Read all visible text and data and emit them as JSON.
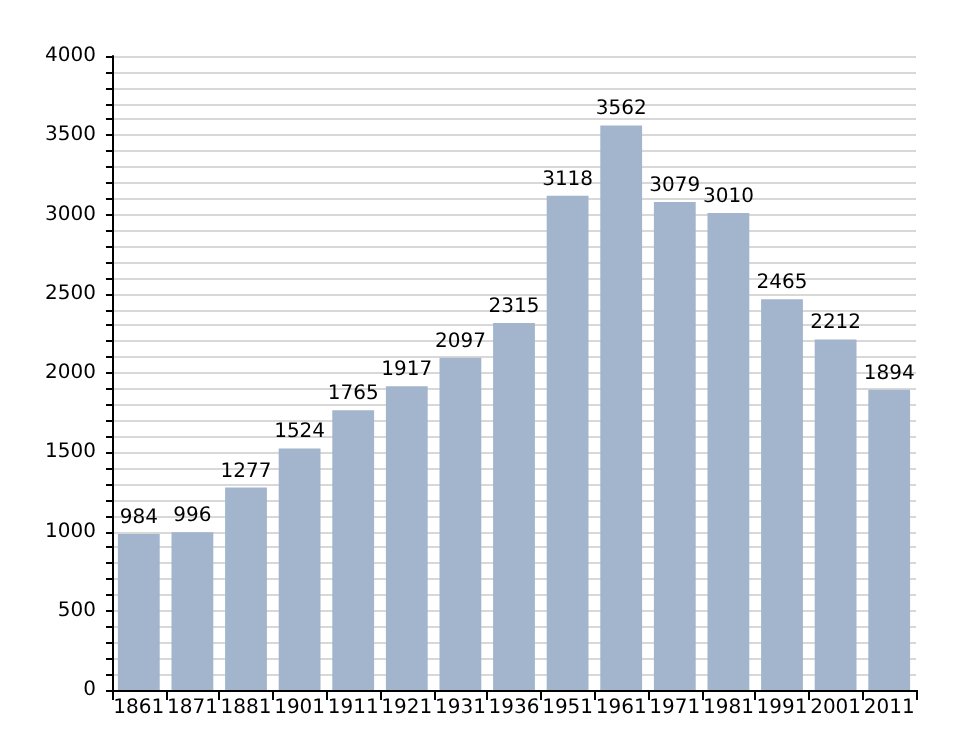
{
  "chart_data": {
    "type": "bar",
    "categories": [
      "1861",
      "1871",
      "1881",
      "1901",
      "1911",
      "1921",
      "1931",
      "1936",
      "1951",
      "1961",
      "1971",
      "1981",
      "1991",
      "2001",
      "2011"
    ],
    "values": [
      984,
      996,
      1277,
      1524,
      1765,
      1917,
      2097,
      2315,
      3118,
      3562,
      3079,
      3010,
      2465,
      2212,
      1894
    ],
    "color": "#a2b5cd",
    "data_labels": true,
    "ylim": [
      0,
      4000
    ],
    "yticks": [
      0,
      {
        "value": 100,
        "label": null
      },
      {
        "value": 200,
        "label": null
      },
      {
        "value": 300,
        "label": null
      },
      {
        "value": 400,
        "label": null
      },
      500,
      {
        "value": 600,
        "label": null
      },
      {
        "value": 700,
        "label": null
      },
      {
        "value": 800,
        "label": null
      },
      {
        "value": 900,
        "label": null
      },
      1000,
      {
        "value": 1100,
        "label": null
      },
      {
        "value": 1200,
        "label": null
      },
      {
        "value": 1300,
        "label": null
      },
      {
        "value": 1400,
        "label": null
      },
      1500,
      {
        "value": 1600,
        "label": null
      },
      {
        "value": 1700,
        "label": null
      },
      {
        "value": 1800,
        "label": null
      },
      {
        "value": 1900,
        "label": null
      },
      2000,
      {
        "value": 2100,
        "label": null
      },
      {
        "value": 2200,
        "label": null
      },
      {
        "value": 2300,
        "label": null
      },
      {
        "value": 2400,
        "label": null
      },
      2500,
      {
        "value": 2600,
        "label": null
      },
      {
        "value": 2700,
        "label": null
      },
      {
        "value": 2800,
        "label": null
      },
      {
        "value": 2900,
        "label": null
      },
      3000,
      {
        "value": 3100,
        "label": null
      },
      {
        "value": 3200,
        "label": null
      },
      {
        "value": 3300,
        "label": null
      },
      {
        "value": 3400,
        "label": null
      },
      3500,
      {
        "value": 3600,
        "label": null
      },
      {
        "value": 3700,
        "label": null
      },
      {
        "value": 3800,
        "label": null
      },
      {
        "value": 3900,
        "label": null
      },
      4000
    ],
    "grid": true
  }
}
